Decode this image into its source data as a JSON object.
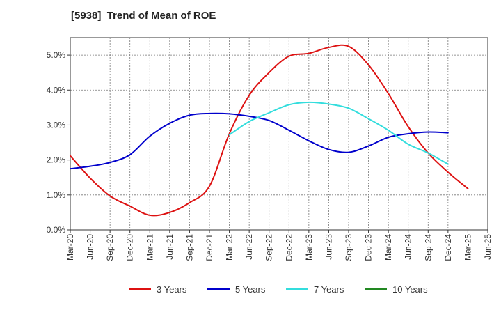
{
  "chart_data": {
    "type": "line",
    "title": "[5938]  Trend of Mean of ROE",
    "xlabel": "",
    "ylabel": "",
    "ylim": [
      0,
      5.5
    ],
    "y_ticks": [
      0,
      1,
      2,
      3,
      4,
      5
    ],
    "y_tick_labels": [
      "0.0%",
      "1.0%",
      "2.0%",
      "3.0%",
      "4.0%",
      "5.0%"
    ],
    "categories": [
      "Mar-20",
      "Jun-20",
      "Sep-20",
      "Dec-20",
      "Mar-21",
      "Jun-21",
      "Sep-21",
      "Dec-21",
      "Mar-22",
      "Jun-22",
      "Sep-22",
      "Dec-22",
      "Mar-23",
      "Jun-23",
      "Sep-23",
      "Dec-23",
      "Mar-24",
      "Jun-24",
      "Sep-24",
      "Dec-24",
      "Mar-25",
      "Jun-25"
    ],
    "grid": true,
    "legend_position": "bottom",
    "series": [
      {
        "name": "3 Years",
        "color": "#dd1111",
        "values": [
          2.12,
          1.48,
          0.97,
          0.68,
          0.42,
          0.5,
          0.78,
          1.25,
          2.75,
          3.85,
          4.5,
          4.97,
          5.05,
          5.22,
          5.25,
          4.72,
          3.9,
          2.95,
          2.2,
          1.65,
          1.18,
          null
        ]
      },
      {
        "name": "5 Years",
        "color": "#0000cc",
        "values": [
          1.75,
          1.82,
          1.93,
          2.15,
          2.68,
          3.05,
          3.28,
          3.33,
          3.32,
          3.25,
          3.13,
          2.85,
          2.55,
          2.3,
          2.22,
          2.4,
          2.65,
          2.75,
          2.8,
          2.78,
          null,
          null
        ]
      },
      {
        "name": "7 Years",
        "color": "#33dddd",
        "values": [
          null,
          null,
          null,
          null,
          null,
          null,
          null,
          null,
          2.72,
          3.1,
          3.35,
          3.58,
          3.65,
          3.6,
          3.48,
          3.18,
          2.85,
          2.45,
          2.2,
          1.88,
          null,
          null
        ]
      },
      {
        "name": "10 Years",
        "color": "#228822",
        "values": [
          null,
          null,
          null,
          null,
          null,
          null,
          null,
          null,
          null,
          null,
          null,
          null,
          null,
          null,
          null,
          null,
          null,
          null,
          null,
          null,
          null,
          null
        ]
      }
    ]
  }
}
